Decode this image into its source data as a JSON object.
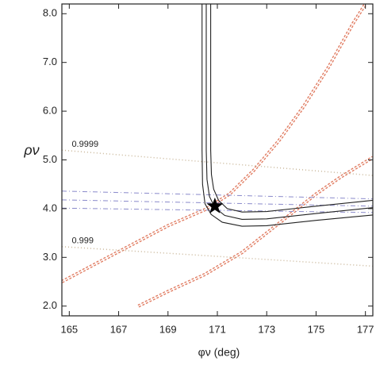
{
  "chart_data": {
    "type": "contour",
    "x_label": "φν  (deg)",
    "y_label": "ρν",
    "annotations": [
      {
        "text": "0.9999",
        "x": 165.1,
        "y": 5.32
      },
      {
        "text": "0.999",
        "x": 165.1,
        "y": 3.34
      }
    ],
    "xlim": [
      164.7,
      177.3
    ],
    "ylim": [
      1.8,
      8.2
    ],
    "xticks": [
      165,
      167,
      169,
      171,
      173,
      175,
      177
    ],
    "yticks": [
      {
        "value": 2,
        "label": "2.0"
      },
      {
        "value": 3,
        "label": "3.0"
      },
      {
        "value": 4,
        "label": "4.0"
      },
      {
        "value": 5,
        "label": "5.0"
      },
      {
        "value": 6,
        "label": "6.0"
      },
      {
        "value": 7,
        "label": "7.0"
      },
      {
        "value": 8,
        "label": "8.0"
      }
    ],
    "series": [
      {
        "color": "#e07a5f",
        "style": "dashed",
        "x": [
          164.7,
          166,
          167.5,
          169,
          170.5,
          171.5,
          172.5,
          173.5,
          174.5,
          175.5,
          176.5,
          177.0
        ],
        "values": [
          2.5,
          2.85,
          3.25,
          3.65,
          3.98,
          4.3,
          4.8,
          5.4,
          6.1,
          6.9,
          7.8,
          8.2
        ]
      },
      {
        "color": "#e07a5f",
        "style": "dashed",
        "x": [
          167.8,
          169,
          170.5,
          172,
          173,
          174,
          175,
          176,
          177.3
        ],
        "values": [
          2.0,
          2.3,
          2.65,
          3.1,
          3.5,
          3.9,
          4.3,
          4.65,
          5.05
        ]
      },
      {
        "color": "#c9b79a",
        "style": "dotted",
        "x": [
          164.7,
          177.3
        ],
        "values": [
          5.2,
          4.68
        ]
      },
      {
        "color": "#c9b79a",
        "style": "dotted",
        "x": [
          164.7,
          177.3
        ],
        "values": [
          3.22,
          2.82
        ]
      },
      {
        "color": "#8a8acb",
        "style": "dashdot",
        "x": [
          164.7,
          177.3
        ],
        "values": [
          4.36,
          4.2
        ]
      },
      {
        "color": "#8a8acb",
        "style": "dashdot",
        "x": [
          164.7,
          177.3
        ],
        "values": [
          4.18,
          4.05
        ]
      },
      {
        "color": "#8a8acb",
        "style": "dashdot",
        "x": [
          164.7,
          177.3
        ],
        "values": [
          4.01,
          3.92
        ]
      },
      {
        "color": "#222222",
        "style": "solid",
        "x": [
          170.38,
          170.38,
          170.4,
          170.5,
          170.75,
          171.2,
          172,
          173,
          175,
          177.3
        ],
        "values": [
          8.2,
          5.2,
          4.5,
          4.1,
          3.88,
          3.72,
          3.64,
          3.65,
          3.76,
          3.87
        ]
      },
      {
        "color": "#222222",
        "style": "solid",
        "x": [
          170.55,
          170.55,
          170.58,
          170.68,
          170.9,
          171.3,
          172,
          173,
          175,
          177.3
        ],
        "values": [
          8.2,
          5.2,
          4.6,
          4.25,
          4.02,
          3.86,
          3.78,
          3.79,
          3.9,
          4.02
        ]
      },
      {
        "color": "#222222",
        "style": "solid",
        "x": [
          170.73,
          170.73,
          170.76,
          170.85,
          171.05,
          171.4,
          172,
          173,
          175,
          177.3
        ],
        "values": [
          8.2,
          5.2,
          4.7,
          4.4,
          4.17,
          4.0,
          3.93,
          3.94,
          4.05,
          4.17
        ]
      }
    ],
    "marker": {
      "x": 170.9,
      "y": 4.05
    }
  }
}
